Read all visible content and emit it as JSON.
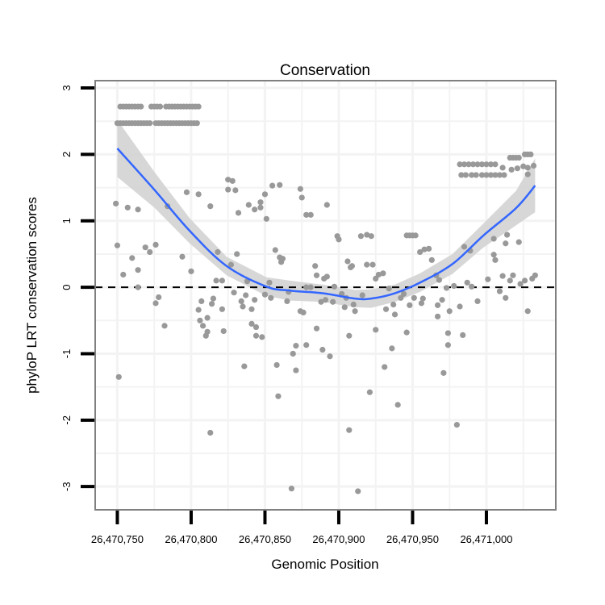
{
  "chart_data": {
    "type": "scatter",
    "title": "Conservation",
    "xlabel": "Genomic Position",
    "ylabel": "phyloP LRT conservation scores",
    "xlim": [
      26470735,
      26471047
    ],
    "ylim": [
      -3.35,
      3.11
    ],
    "x_ticks": [
      26470750,
      26470800,
      26470850,
      26470900,
      26470950,
      26471000
    ],
    "x_tick_labels": [
      "26,470,750",
      "26,470,800",
      "26,470,850",
      "26,470,900",
      "26,470,950",
      "26,471,000"
    ],
    "y_ticks": [
      -3,
      -2,
      -1,
      0,
      1,
      2,
      3
    ],
    "y_tick_labels": [
      "-3",
      "-2",
      "-1",
      "0",
      "1",
      "2",
      "3"
    ],
    "grid": true,
    "reference_line": {
      "y": 0,
      "style": "dashed"
    },
    "colors": {
      "points": "#999999",
      "smooth": "#3366FF",
      "band": "#d3d3d3",
      "border": "#808080"
    },
    "x_origin": 26470750,
    "points_offset_xy": [
      [
        2,
        2.72
      ],
      [
        4,
        2.72
      ],
      [
        6,
        2.72
      ],
      [
        8,
        2.72
      ],
      [
        10,
        2.72
      ],
      [
        12,
        2.72
      ],
      [
        14,
        2.72
      ],
      [
        16,
        2.72
      ],
      [
        23,
        2.72
      ],
      [
        25,
        2.72
      ],
      [
        27,
        2.72
      ],
      [
        29,
        2.72
      ],
      [
        33,
        2.72
      ],
      [
        35,
        2.72
      ],
      [
        37,
        2.72
      ],
      [
        39,
        2.72
      ],
      [
        41,
        2.72
      ],
      [
        43,
        2.72
      ],
      [
        45,
        2.72
      ],
      [
        47,
        2.72
      ],
      [
        49,
        2.72
      ],
      [
        51,
        2.72
      ],
      [
        53,
        2.72
      ],
      [
        55,
        2.72
      ],
      [
        0,
        2.47
      ],
      [
        2,
        2.47
      ],
      [
        4,
        2.47
      ],
      [
        6,
        2.47
      ],
      [
        8,
        2.47
      ],
      [
        10,
        2.47
      ],
      [
        12,
        2.47
      ],
      [
        14,
        2.47
      ],
      [
        16,
        2.47
      ],
      [
        18,
        2.47
      ],
      [
        20,
        2.47
      ],
      [
        22,
        2.47
      ],
      [
        26,
        2.47
      ],
      [
        28,
        2.47
      ],
      [
        30,
        2.47
      ],
      [
        32,
        2.47
      ],
      [
        34,
        2.47
      ],
      [
        36,
        2.47
      ],
      [
        38,
        2.47
      ],
      [
        40,
        2.47
      ],
      [
        42,
        2.47
      ],
      [
        44,
        2.47
      ],
      [
        46,
        2.47
      ],
      [
        48,
        2.47
      ],
      [
        50,
        2.47
      ],
      [
        52,
        2.47
      ],
      [
        54,
        2.47
      ],
      [
        -1,
        1.26
      ],
      [
        0,
        0.63
      ],
      [
        1,
        -1.35
      ],
      [
        4,
        0.19
      ],
      [
        7,
        1.2
      ],
      [
        10,
        0.44
      ],
      [
        14,
        1.17
      ],
      [
        14,
        0.26
      ],
      [
        14,
        0
      ],
      [
        19,
        0.6
      ],
      [
        22,
        0.53
      ],
      [
        26,
        0.64
      ],
      [
        26,
        -0.24
      ],
      [
        28,
        -0.15
      ],
      [
        32,
        -0.58
      ],
      [
        34,
        1.22
      ],
      [
        44,
        0.46
      ],
      [
        47,
        1.43
      ],
      [
        50,
        0.24
      ],
      [
        55,
        1.4
      ],
      [
        55,
        -0.34
      ],
      [
        56,
        -0.5
      ],
      [
        58,
        -0.58
      ],
      [
        57,
        -0.21
      ],
      [
        60,
        -0.73
      ],
      [
        61,
        -0.46
      ],
      [
        61,
        -0.67
      ],
      [
        63,
        1.22
      ],
      [
        63,
        -2.19
      ],
      [
        64,
        -0.25
      ],
      [
        65,
        -0.17
      ],
      [
        67,
        0.1
      ],
      [
        68,
        0.53
      ],
      [
        71,
        -0.33
      ],
      [
        71,
        0.1
      ],
      [
        72,
        -0.66
      ],
      [
        75,
        1.62
      ],
      [
        78,
        1.6
      ],
      [
        75,
        1.47
      ],
      [
        80,
        1.46
      ],
      [
        77,
        0.34
      ],
      [
        79,
        -0.08
      ],
      [
        81,
        0.5
      ],
      [
        82,
        1.12
      ],
      [
        84,
        -0.21
      ],
      [
        85,
        -0.29
      ],
      [
        86,
        -1.19
      ],
      [
        87,
        -0.12
      ],
      [
        88,
        0.09
      ],
      [
        89,
        1.24
      ],
      [
        91,
        -0.33
      ],
      [
        91,
        -0.55
      ],
      [
        93,
        -0.19
      ],
      [
        93,
        1.17
      ],
      [
        94,
        -0.6
      ],
      [
        94,
        -0.73
      ],
      [
        97,
        1.2
      ],
      [
        97,
        1.28
      ],
      [
        98,
        -0.75
      ],
      [
        100,
        -0.11
      ],
      [
        100,
        1.4
      ],
      [
        101,
        1.03
      ],
      [
        103,
        0.07
      ],
      [
        104,
        -0.16
      ],
      [
        105,
        1.53
      ],
      [
        107,
        0.56
      ],
      [
        110,
        1.54
      ],
      [
        108,
        -1.17
      ],
      [
        109,
        -1.64
      ],
      [
        110,
        0.45
      ],
      [
        111,
        0.38
      ],
      [
        112,
        0.43
      ],
      [
        115,
        -0.21
      ],
      [
        116,
        -0.07
      ],
      [
        118,
        -3.03
      ],
      [
        119,
        -1.0
      ],
      [
        121,
        -1.25
      ],
      [
        121,
        -0.88
      ],
      [
        124,
        1.48
      ],
      [
        125,
        1.35
      ],
      [
        124,
        -0.36
      ],
      [
        126,
        -0.38
      ],
      [
        128,
        -0.87
      ],
      [
        128,
        1.09
      ],
      [
        131,
        1.09
      ],
      [
        128,
        0
      ],
      [
        131,
        0
      ],
      [
        134,
        0.32
      ],
      [
        135,
        0.18
      ],
      [
        135,
        -0.62
      ],
      [
        138,
        -0.22
      ],
      [
        139,
        -0.94
      ],
      [
        140,
        0.13
      ],
      [
        141,
        -0.19
      ],
      [
        142,
        1.24
      ],
      [
        142,
        0.16
      ],
      [
        144,
        -1.04
      ],
      [
        146,
        -0.22
      ],
      [
        147,
        0.01
      ],
      [
        149,
        0.77
      ],
      [
        150,
        0.72
      ],
      [
        152,
        -0.1
      ],
      [
        154,
        -0.3
      ],
      [
        155,
        -0.16
      ],
      [
        156,
        0.39
      ],
      [
        157,
        -0.73
      ],
      [
        157,
        -2.15
      ],
      [
        158,
        0.3
      ],
      [
        159,
        0.32
      ],
      [
        160,
        -0.26
      ],
      [
        161,
        -0.36
      ],
      [
        163,
        -3.07
      ],
      [
        165,
        0.77
      ],
      [
        166,
        -0.12
      ],
      [
        169,
        0.79
      ],
      [
        171,
        -1.58
      ],
      [
        169,
        0.34
      ],
      [
        172,
        0.77
      ],
      [
        173,
        0.34
      ],
      [
        175,
        -0.64
      ],
      [
        175,
        0.13
      ],
      [
        177,
        0.19
      ],
      [
        180,
        0.21
      ],
      [
        181,
        -1.2
      ],
      [
        182,
        -0.33
      ],
      [
        184,
        -0.02
      ],
      [
        186,
        -0.92
      ],
      [
        187,
        -0.26
      ],
      [
        188,
        -0.41
      ],
      [
        190,
        -1.77
      ],
      [
        192,
        -0.16
      ],
      [
        194,
        -0.1
      ],
      [
        196,
        -0.68
      ],
      [
        196,
        0.78
      ],
      [
        198,
        0.78
      ],
      [
        200,
        0.78
      ],
      [
        202,
        0.78
      ],
      [
        198,
        -0.27
      ],
      [
        201,
        -0.16
      ],
      [
        205,
        0.53
      ],
      [
        206,
        -0.24
      ],
      [
        207,
        -0.17
      ],
      [
        208,
        0.57
      ],
      [
        211,
        0.58
      ],
      [
        213,
        0.41
      ],
      [
        216,
        0.18
      ],
      [
        217,
        -0.27
      ],
      [
        217,
        -0.44
      ],
      [
        218,
        0.11
      ],
      [
        220,
        -0.19
      ],
      [
        223,
        -0.01
      ],
      [
        221,
        -1.29
      ],
      [
        224,
        -0.87
      ],
      [
        224,
        -0.69
      ],
      [
        225,
        -0.36
      ],
      [
        228,
        0.02
      ],
      [
        230,
        -2.07
      ],
      [
        232,
        -0.29
      ],
      [
        234,
        -0.72
      ],
      [
        235,
        0.61
      ],
      [
        237,
        0.07
      ],
      [
        239,
        0.55
      ],
      [
        240,
        0.01
      ],
      [
        244,
        -0.21
      ],
      [
        251,
        0.12
      ],
      [
        255,
        0.73
      ],
      [
        255,
        0.49
      ],
      [
        256,
        0.41
      ],
      [
        259,
        -0.06
      ],
      [
        261,
        0.17
      ],
      [
        263,
        0.66
      ],
      [
        263,
        -0.16
      ],
      [
        266,
        0.1
      ],
      [
        264,
        0.79
      ],
      [
        268,
        0.18
      ],
      [
        272,
        0.68
      ],
      [
        273,
        0.05
      ],
      [
        276,
        0.1
      ],
      [
        278,
        -0.36
      ],
      [
        281,
        0.13
      ],
      [
        283,
        0.18
      ],
      [
        232,
        1.85
      ],
      [
        235,
        1.85
      ],
      [
        238,
        1.85
      ],
      [
        241,
        1.85
      ],
      [
        244,
        1.85
      ],
      [
        247,
        1.85
      ],
      [
        250,
        1.85
      ],
      [
        253,
        1.85
      ],
      [
        256,
        1.85
      ],
      [
        233,
        1.69
      ],
      [
        236,
        1.69
      ],
      [
        240,
        1.69
      ],
      [
        243,
        1.69
      ],
      [
        247,
        1.69
      ],
      [
        250,
        1.69
      ],
      [
        253,
        1.69
      ],
      [
        256,
        1.69
      ],
      [
        259,
        1.69
      ],
      [
        262,
        1.69
      ],
      [
        266,
        1.95
      ],
      [
        268,
        1.95
      ],
      [
        270,
        1.95
      ],
      [
        272,
        1.95
      ],
      [
        276,
        2.0
      ],
      [
        278,
        2.0
      ],
      [
        280,
        2.0
      ],
      [
        261,
        1.8
      ],
      [
        267,
        1.77
      ],
      [
        271,
        1.79
      ],
      [
        275,
        1.82
      ],
      [
        278,
        1.8
      ],
      [
        282,
        1.83
      ],
      [
        278,
        1.7
      ]
    ],
    "smooth": {
      "x_offset": [
        0,
        25,
        49,
        74,
        101,
        117,
        139,
        161,
        172,
        188,
        205,
        227,
        248,
        270,
        283
      ],
      "y": [
        2.09,
        1.47,
        0.85,
        0.32,
        0.01,
        -0.05,
        -0.09,
        -0.17,
        -0.17,
        -0.09,
        0.07,
        0.35,
        0.78,
        1.19,
        1.53
      ],
      "lower": [
        1.66,
        1.2,
        0.66,
        0.18,
        -0.13,
        -0.2,
        -0.22,
        -0.3,
        -0.31,
        -0.22,
        -0.07,
        0.2,
        0.6,
        0.93,
        1.13
      ],
      "upper": [
        2.52,
        1.74,
        1.04,
        0.46,
        0.15,
        0.1,
        0.04,
        -0.04,
        -0.03,
        0.04,
        0.21,
        0.5,
        0.96,
        1.45,
        1.94
      ]
    }
  }
}
